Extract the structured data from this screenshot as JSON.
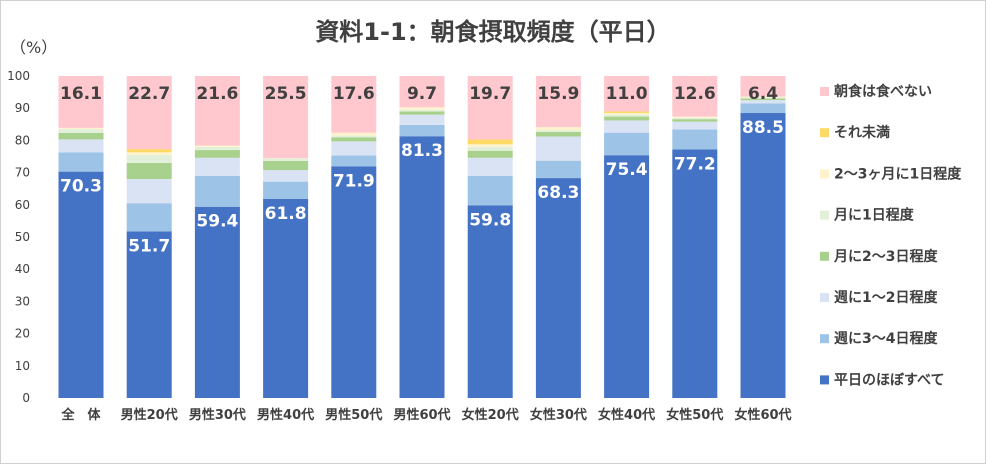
{
  "chart_data": {
    "type": "bar",
    "stacked": true,
    "title": "資料1-1：朝食摂取頻度（平日）",
    "y_unit": "（%）",
    "ylim": [
      0,
      100
    ],
    "yticks": [
      0,
      10,
      20,
      30,
      40,
      50,
      60,
      70,
      80,
      90,
      100
    ],
    "categories": [
      "全　体",
      "男性20代",
      "男性30代",
      "男性40代",
      "男性50代",
      "男性60代",
      "女性20代",
      "女性30代",
      "女性40代",
      "女性50代",
      "女性60代"
    ],
    "series": [
      {
        "name": "平日のほぼすべて",
        "color": "#4472C4",
        "values": [
          70.3,
          51.7,
          59.4,
          61.8,
          71.9,
          81.3,
          59.8,
          68.3,
          75.4,
          77.2,
          88.5
        ]
      },
      {
        "name": "週に3～4日程度",
        "color": "#9DC3E6",
        "values": [
          6.0,
          8.8,
          9.6,
          5.4,
          3.4,
          3.5,
          9.2,
          5.4,
          7.0,
          6.2,
          3.0
        ]
      },
      {
        "name": "週に1～2日程度",
        "color": "#DAE3F3",
        "values": [
          4.0,
          7.5,
          5.6,
          3.6,
          4.4,
          3.2,
          5.6,
          7.5,
          3.8,
          2.4,
          1.0
        ]
      },
      {
        "name": "月に2～3日程度",
        "color": "#A9D18E",
        "values": [
          2.0,
          5.0,
          2.4,
          2.8,
          1.2,
          1.0,
          2.2,
          1.4,
          1.2,
          0.8,
          0.5
        ]
      },
      {
        "name": "月に1日程度",
        "color": "#E2F0D9",
        "values": [
          1.2,
          2.5,
          1.0,
          0.8,
          0.6,
          0.5,
          1.2,
          0.6,
          0.6,
          0.4,
          0.3
        ]
      },
      {
        "name": "2～3ヶ月に1日程度",
        "color": "#FFF2CC",
        "values": [
          0.4,
          0.8,
          0.4,
          0.1,
          0.9,
          0.8,
          0.8,
          0.9,
          0.5,
          0.4,
          0.3
        ]
      },
      {
        "name": "それ未満",
        "color": "#FFD966",
        "values": [
          0.0,
          1.0,
          0.0,
          0.0,
          0.0,
          0.0,
          1.5,
          0.0,
          0.5,
          0.0,
          0.0
        ]
      },
      {
        "name": "朝食は食べない",
        "color": "#FFC7CE",
        "values": [
          16.1,
          22.7,
          21.6,
          25.5,
          17.6,
          9.7,
          19.7,
          15.9,
          11.0,
          12.6,
          6.4
        ]
      }
    ],
    "data_labels": {
      "bottom_series": [
        70.3,
        51.7,
        59.4,
        61.8,
        71.9,
        81.3,
        59.8,
        68.3,
        75.4,
        77.2,
        88.5
      ],
      "top_series": [
        16.1,
        22.7,
        21.6,
        25.5,
        17.6,
        9.7,
        19.7,
        15.9,
        11.0,
        12.6,
        6.4
      ]
    },
    "legend": "right",
    "grid": false
  }
}
